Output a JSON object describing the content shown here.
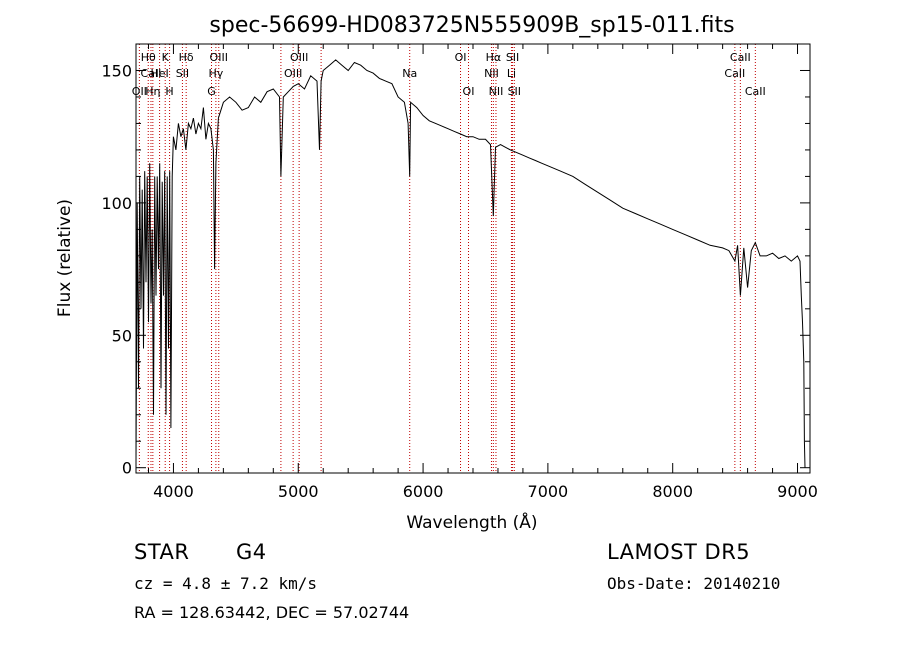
{
  "chart_data": {
    "type": "line",
    "title": "spec-56699-HD083725N555909B_sp15-011.fits",
    "xlabel": "Wavelength (Å)",
    "ylabel": "Flux (relative)",
    "xlim": [
      3700,
      9100
    ],
    "ylim": [
      -2,
      160
    ],
    "xticks": [
      4000,
      5000,
      6000,
      7000,
      8000,
      9000
    ],
    "yticks": [
      0,
      50,
      100,
      150
    ],
    "grid": false,
    "series": [
      {
        "x": [
          3700,
          3710,
          3720,
          3730,
          3740,
          3750,
          3760,
          3770,
          3780,
          3790,
          3800,
          3810,
          3820,
          3830,
          3840,
          3850,
          3860,
          3870,
          3880,
          3890,
          3900,
          3910,
          3920,
          3930,
          3940,
          3950,
          3960,
          3970,
          3980,
          3990,
          4000,
          4020,
          4040,
          4060,
          4080,
          4100,
          4120,
          4140,
          4160,
          4180,
          4200,
          4220,
          4240,
          4260,
          4280,
          4300,
          4320,
          4330,
          4340,
          4360,
          4380,
          4400,
          4450,
          4500,
          4550,
          4600,
          4650,
          4700,
          4750,
          4800,
          4850,
          4861,
          4880,
          4920,
          4960,
          5000,
          5050,
          5100,
          5150,
          5170,
          5183,
          5200,
          5250,
          5300,
          5350,
          5400,
          5450,
          5500,
          5550,
          5600,
          5650,
          5700,
          5750,
          5800,
          5850,
          5880,
          5893,
          5900,
          5950,
          6000,
          6050,
          6100,
          6150,
          6200,
          6250,
          6300,
          6350,
          6400,
          6450,
          6500,
          6540,
          6563,
          6580,
          6620,
          6660,
          6700,
          6750,
          6800,
          6850,
          6900,
          6950,
          7000,
          7100,
          7200,
          7300,
          7400,
          7500,
          7600,
          7700,
          7800,
          7900,
          8000,
          8100,
          8200,
          8300,
          8400,
          8450,
          8498,
          8520,
          8542,
          8570,
          8600,
          8630,
          8662,
          8700,
          8750,
          8800,
          8850,
          8900,
          8950,
          9000,
          9020,
          9030,
          9040,
          9050,
          9055,
          9060
        ],
        "y": [
          2,
          100,
          30,
          110,
          60,
          105,
          45,
          112,
          70,
          110,
          55,
          115,
          62,
          90,
          20,
          110,
          65,
          110,
          75,
          115,
          30,
          108,
          65,
          112,
          20,
          110,
          45,
          112,
          15,
          110,
          125,
          120,
          130,
          125,
          128,
          120,
          130,
          128,
          132,
          126,
          130,
          128,
          136,
          124,
          130,
          128,
          120,
          75,
          115,
          132,
          135,
          138,
          140,
          138,
          135,
          136,
          140,
          138,
          142,
          143,
          140,
          110,
          140,
          142,
          144,
          145,
          143,
          148,
          146,
          120,
          146,
          150,
          152,
          154,
          152,
          150,
          153,
          152,
          150,
          149,
          147,
          146,
          145,
          140,
          138,
          130,
          110,
          138,
          136,
          133,
          131,
          130,
          129,
          128,
          127,
          126,
          125,
          125,
          124,
          124,
          122,
          95,
          121,
          122,
          121,
          120,
          119,
          118,
          117,
          116,
          115,
          114,
          112,
          110,
          107,
          104,
          101,
          98,
          96,
          94,
          92,
          90,
          88,
          86,
          84,
          83,
          82,
          78,
          84,
          65,
          83,
          68,
          82,
          85,
          80,
          80,
          81,
          79,
          80,
          78,
          80,
          78,
          65,
          55,
          40,
          10,
          0
        ]
      }
    ],
    "annotations": [
      {
        "label": "Hθ",
        "x": 3798,
        "row": 1
      },
      {
        "label": "CaII",
        "x": 3820,
        "row": 2
      },
      {
        "label": "OII",
        "x": 3727,
        "row": 3
      },
      {
        "label": "K",
        "x": 3934,
        "row": 1
      },
      {
        "label": "HeI",
        "x": 3889,
        "row": 2
      },
      {
        "label": "Hη",
        "x": 3835,
        "row": 3
      },
      {
        "label": "Hδ",
        "x": 4102,
        "row": 1
      },
      {
        "label": "SII",
        "x": 4072,
        "row": 2
      },
      {
        "label": "H",
        "x": 3969,
        "row": 3
      },
      {
        "label": "OIII",
        "x": 4363,
        "row": 1
      },
      {
        "label": "Hγ",
        "x": 4340,
        "row": 2
      },
      {
        "label": "G",
        "x": 4305,
        "row": 3
      },
      {
        "label": "OIII",
        "x": 5007,
        "row": 1
      },
      {
        "label": "OIII",
        "x": 4959,
        "row": 2
      },
      {
        "label": "Na",
        "x": 5893,
        "row": 2
      },
      {
        "label": "OI",
        "x": 6300,
        "row": 1
      },
      {
        "label": "OI",
        "x": 6364,
        "row": 3
      },
      {
        "label": "Hα",
        "x": 6563,
        "row": 1
      },
      {
        "label": "SII",
        "x": 6717,
        "row": 1
      },
      {
        "label": "NII",
        "x": 6548,
        "row": 2
      },
      {
        "label": "Li",
        "x": 6708,
        "row": 2
      },
      {
        "label": "NII",
        "x": 6584,
        "row": 3
      },
      {
        "label": "SII",
        "x": 6731,
        "row": 3
      },
      {
        "label": "CaII",
        "x": 8542,
        "row": 1
      },
      {
        "label": "CaII",
        "x": 8498,
        "row": 2
      },
      {
        "label": "CaII",
        "x": 8662,
        "row": 3
      }
    ],
    "marker_lines": [
      3727,
      3798,
      3820,
      3835,
      3889,
      3934,
      3969,
      4072,
      4102,
      4305,
      4340,
      4363,
      4861,
      4959,
      5007,
      5183,
      5893,
      6300,
      6364,
      6548,
      6563,
      6584,
      6708,
      6717,
      6731,
      8498,
      8542,
      8662
    ],
    "marker_color": "#c00000",
    "line_color": "#000000"
  },
  "info": {
    "object_type": "STAR",
    "subclass": "G4",
    "survey": "LAMOST  DR5",
    "cz": "cz = 4.8 ± 7.2 km/s",
    "obs_date": "Obs-Date: 20140210",
    "coords": "RA = 128.63442, DEC =  57.02744"
  }
}
